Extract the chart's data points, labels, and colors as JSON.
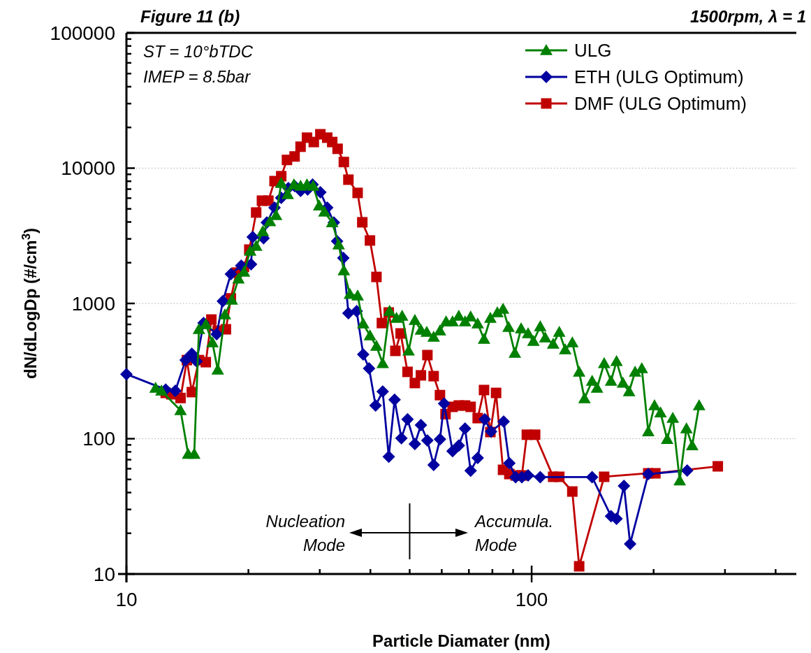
{
  "chart_data": {
    "type": "line",
    "title": "Figure 11 (b)",
    "subtitle": "1500rpm, λ = 1",
    "xlabel": "Particle Diamater (nm)",
    "ylabel": "dN/dLogDp (#/cm$^{3}$)",
    "log": "xy",
    "grid": "y",
    "legend": "top right",
    "line_style": "solid",
    "xlim": [
      10,
      450
    ],
    "ylim": [
      10,
      100000
    ],
    "xticks": [
      10,
      {
        "value": 20,
        "label": null
      },
      {
        "value": 30,
        "label": null
      },
      {
        "value": 40,
        "label": null
      },
      {
        "value": 50,
        "label": null
      },
      {
        "value": 60,
        "label": null
      },
      {
        "value": 70,
        "label": null
      },
      {
        "value": 80,
        "label": null
      },
      {
        "value": 90,
        "label": null
      },
      100,
      {
        "value": 200,
        "label": null
      },
      {
        "value": 300,
        "label": null
      },
      {
        "value": 400,
        "label": null
      }
    ],
    "yticks": [
      10,
      {
        "value": 20,
        "label": null
      },
      {
        "value": 30,
        "label": null
      },
      {
        "value": 40,
        "label": null
      },
      {
        "value": 50,
        "label": null
      },
      {
        "value": 60,
        "label": null
      },
      {
        "value": 70,
        "label": null
      },
      {
        "value": 80,
        "label": null
      },
      {
        "value": 90,
        "label": null
      },
      100,
      {
        "value": 200,
        "label": null
      },
      {
        "value": 300,
        "label": null
      },
      {
        "value": 400,
        "label": null
      },
      {
        "value": 500,
        "label": null
      },
      {
        "value": 600,
        "label": null
      },
      {
        "value": 700,
        "label": null
      },
      {
        "value": 800,
        "label": null
      },
      {
        "value": 900,
        "label": null
      },
      1000,
      {
        "value": 2000,
        "label": null
      },
      {
        "value": 3000,
        "label": null
      },
      {
        "value": 4000,
        "label": null
      },
      {
        "value": 5000,
        "label": null
      },
      {
        "value": 6000,
        "label": null
      },
      {
        "value": 7000,
        "label": null
      },
      {
        "value": 8000,
        "label": null
      },
      {
        "value": 9000,
        "label": null
      },
      10000,
      {
        "value": 20000,
        "label": null
      },
      {
        "value": 30000,
        "label": null
      },
      {
        "value": 40000,
        "label": null
      },
      {
        "value": 50000,
        "label": null
      },
      {
        "value": 60000,
        "label": null
      },
      {
        "value": 70000,
        "label": null
      },
      {
        "value": 80000,
        "label": null
      },
      {
        "value": 90000,
        "label": null
      },
      100000
    ],
    "ref_lines": [
      {
        "axis": "x",
        "value": 50
      }
    ],
    "annotations": [
      "ST = 10°bTDC",
      "IMEP = 8.5bar",
      "Nucleation Mode",
      "Accumula. Mode"
    ],
    "series": [
      {
        "name": "ULG",
        "color": "#008000",
        "marker": "triangle",
        "x": [
          11.8,
          12.2,
          13.6,
          14.2,
          14.7,
          15.1,
          15.7,
          16.3,
          16.8,
          17.5,
          18.2,
          18.9,
          19.5,
          20.2,
          20.9,
          21.7,
          22.6,
          23.4,
          24.1,
          25.0,
          25.9,
          26.9,
          27.9,
          28.9,
          29.9,
          30.8,
          32.2,
          33.4,
          34.4,
          35.6,
          37.2,
          38.4,
          39.9,
          41.4,
          42.9,
          44.6,
          46.4,
          47.9,
          49.7,
          51.5,
          53.3,
          55.1,
          57.3,
          59.4,
          61.5,
          63.8,
          66.1,
          68.5,
          70.7,
          73.6,
          76.3,
          79.1,
          82.3,
          85.0,
          87.7,
          90.9,
          94.2,
          98.0,
          101,
          105,
          108,
          113,
          117,
          121,
          126,
          131,
          135,
          141,
          145,
          151,
          157,
          162,
          168,
          174,
          180,
          187,
          194,
          201,
          208,
          216,
          223,
          232,
          241,
          249,
          259
        ],
        "values": [
          237,
          226,
          162,
          77,
          77,
          644,
          700,
          514,
          323,
          826,
          1060,
          1520,
          1710,
          2440,
          2650,
          3410,
          4030,
          4480,
          7740,
          6400,
          7560,
          7390,
          7560,
          7390,
          5280,
          4750,
          3970,
          2720,
          1750,
          1170,
          1140,
          708,
          578,
          484,
          360,
          877,
          779,
          807,
          446,
          751,
          637,
          614,
          565,
          629,
          734,
          734,
          807,
          734,
          798,
          708,
          545,
          779,
          857,
          909,
          667,
          430,
          651,
          600,
          526,
          675,
          558,
          501,
          614,
          456,
          514,
          312,
          198,
          267,
          237,
          360,
          267,
          373,
          258,
          223,
          312,
          331,
          113,
          176,
          156,
          99,
          142,
          49,
          119,
          89,
          176
        ]
      },
      {
        "name": "ETH (ULG Optimum)",
        "color": "#0000a0",
        "marker": "diamond",
        "x": [
          10,
          12.5,
          13.2,
          14.0,
          14.5,
          14.9,
          15.5,
          16.7,
          17.3,
          18.1,
          19.2,
          20.3,
          20.5,
          21.8,
          22.2,
          23.2,
          24.1,
          25.1,
          26.0,
          26.9,
          28.0,
          28.8,
          30.1,
          31.3,
          32.5,
          33.1,
          34.3,
          35.3,
          37.0,
          38.4,
          39.7,
          41.2,
          42.9,
          44.4,
          45.9,
          47.7,
          49.4,
          51.5,
          53.3,
          55.3,
          57.3,
          59.4,
          60.8,
          63.8,
          66.1,
          68.5,
          70.7,
          73.6,
          76.6,
          79.4,
          85.3,
          88.1,
          91.3,
          94.6,
          98.0,
          105,
          141,
          157,
          162,
          169,
          175,
          194,
          242
        ],
        "values": [
          300,
          231,
          226,
          381,
          424,
          373,
          716,
          593,
          1040,
          1650,
          1900,
          1950,
          3100,
          3030,
          3970,
          5100,
          6030,
          7120,
          7390,
          6790,
          6950,
          7560,
          6640,
          5100,
          3970,
          2880,
          2170,
          847,
          877,
          420,
          331,
          176,
          223,
          73.5,
          194,
          101,
          139,
          91.5,
          126,
          97,
          64,
          99,
          182,
          81,
          89,
          119,
          58,
          72,
          139,
          113,
          134,
          66,
          52,
          52,
          53.5,
          52,
          52,
          26.8,
          25.6,
          44.8,
          16.7,
          54.8,
          58.2
        ]
      },
      {
        "name": "DMF (ULG Optimum)",
        "color": "#c00000",
        "marker": "square",
        "x": [
          12.5,
          12.9,
          13.6,
          14.1,
          14.5,
          15.1,
          15.7,
          16.2,
          16.8,
          17.6,
          18.1,
          18.7,
          19.5,
          20.1,
          20.9,
          21.6,
          22.4,
          23.2,
          24.1,
          24.9,
          26.0,
          26.9,
          27.9,
          29.0,
          30.1,
          31.3,
          32.2,
          33.2,
          34.4,
          35.3,
          37.2,
          38.2,
          39.9,
          41.4,
          42.7,
          44.4,
          46.1,
          47.5,
          49.4,
          51.5,
          53.3,
          55.3,
          57.3,
          59.4,
          61.3,
          63.8,
          66.1,
          68.5,
          70.7,
          73.6,
          76.3,
          79.1,
          81.7,
          85.0,
          88.1,
          91.3,
          94.6,
          97.3,
          102,
          113,
          117,
          126,
          131,
          151,
          194,
          202,
          288
        ],
        "values": [
          218,
          213,
          200,
          381,
          221,
          381,
          368,
          760,
          629,
          644,
          1090,
          1690,
          1860,
          2500,
          4700,
          5750,
          5750,
          8020,
          8720,
          11500,
          12200,
          14400,
          16800,
          15600,
          17800,
          16800,
          15600,
          13900,
          11100,
          8220,
          6560,
          3980,
          2920,
          1570,
          716,
          857,
          446,
          600,
          312,
          258,
          294,
          415,
          290,
          210,
          152,
          172,
          176,
          176,
          172,
          142,
          229,
          112,
          218,
          58.9,
          54.8,
          53.5,
          53.5,
          107,
          107,
          52.3,
          52.3,
          40.7,
          11.4,
          52.3,
          55.5,
          55.5,
          62.5
        ]
      }
    ]
  }
}
